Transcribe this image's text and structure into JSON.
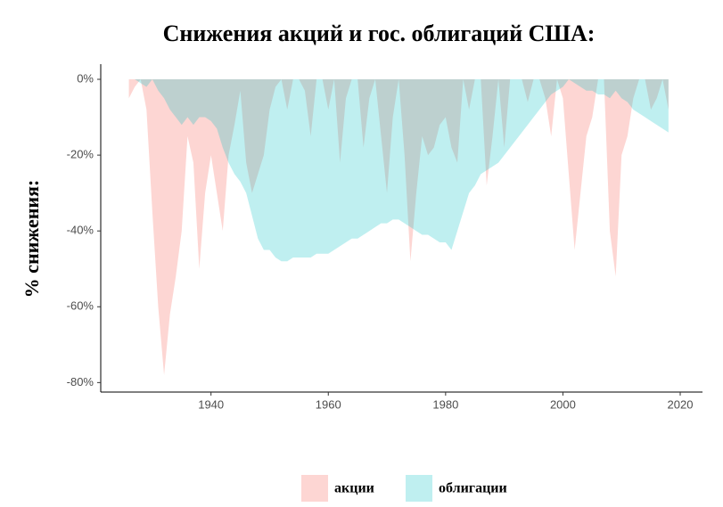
{
  "chart_data": {
    "type": "area",
    "title": "Снижения акций и гос. облигаций США:",
    "y_label": "% снижения:",
    "x": [
      1926,
      1927,
      1928,
      1929,
      1930,
      1931,
      1932,
      1933,
      1934,
      1935,
      1936,
      1937,
      1938,
      1939,
      1940,
      1941,
      1942,
      1943,
      1944,
      1945,
      1946,
      1947,
      1948,
      1949,
      1950,
      1951,
      1952,
      1953,
      1954,
      1955,
      1956,
      1957,
      1958,
      1959,
      1960,
      1961,
      1962,
      1963,
      1964,
      1965,
      1966,
      1967,
      1968,
      1969,
      1970,
      1971,
      1972,
      1973,
      1974,
      1975,
      1976,
      1977,
      1978,
      1979,
      1980,
      1981,
      1982,
      1983,
      1984,
      1985,
      1986,
      1987,
      1988,
      1989,
      1990,
      1991,
      1992,
      1993,
      1994,
      1995,
      1996,
      1997,
      1998,
      1999,
      2000,
      2001,
      2002,
      2003,
      2004,
      2005,
      2006,
      2007,
      2008,
      2009,
      2010,
      2011,
      2012,
      2013,
      2014,
      2015,
      2016,
      2017,
      2018
    ],
    "series": [
      {
        "name": "акции",
        "color": "#F8766D",
        "values": [
          -5,
          -2,
          0,
          -8,
          -35,
          -60,
          -78,
          -62,
          -52,
          -40,
          -15,
          -22,
          -50,
          -30,
          -20,
          -30,
          -40,
          -20,
          -12,
          -3,
          -22,
          -30,
          -25,
          -20,
          -8,
          -2,
          0,
          -8,
          0,
          0,
          -3,
          -15,
          0,
          0,
          -8,
          0,
          -22,
          -5,
          0,
          0,
          -18,
          -5,
          0,
          -15,
          -30,
          -10,
          0,
          -20,
          -48,
          -30,
          -15,
          -20,
          -18,
          -12,
          -10,
          -18,
          -22,
          0,
          -8,
          0,
          0,
          -28,
          -15,
          0,
          -18,
          0,
          0,
          0,
          -6,
          0,
          0,
          -5,
          -15,
          0,
          -5,
          -25,
          -45,
          -30,
          -15,
          -10,
          0,
          0,
          -40,
          -52,
          -20,
          -15,
          -5,
          0,
          0,
          -8,
          -5,
          0,
          -8
        ]
      },
      {
        "name": "облигации",
        "color": "#00BFC4",
        "values": [
          0,
          0,
          -1,
          -2,
          0,
          -3,
          -5,
          -8,
          -10,
          -12,
          -10,
          -12,
          -10,
          -10,
          -11,
          -13,
          -18,
          -22,
          -25,
          -27,
          -30,
          -36,
          -42,
          -45,
          -45,
          -47,
          -48,
          -48,
          -47,
          -47,
          -47,
          -47,
          -46,
          -46,
          -46,
          -45,
          -44,
          -43,
          -42,
          -42,
          -41,
          -40,
          -39,
          -38,
          -38,
          -37,
          -37,
          -38,
          -39,
          -40,
          -41,
          -41,
          -42,
          -43,
          -43,
          -45,
          -40,
          -35,
          -30,
          -28,
          -25,
          -24,
          -23,
          -22,
          -20,
          -18,
          -16,
          -14,
          -12,
          -10,
          -8,
          -6,
          -4,
          -3,
          -2,
          0,
          -1,
          -2,
          -3,
          -3,
          -4,
          -4,
          -5,
          -3,
          -5,
          -6,
          -8,
          -9,
          -10,
          -11,
          -12,
          -13,
          -14
        ]
      }
    ],
    "xlim": [
      1921.2,
      2023.8
    ],
    "xticks": [
      1940,
      1960,
      1980,
      2000,
      2020
    ],
    "ylim": [
      -82.5,
      4
    ],
    "yticks": [
      {
        "value": 0,
        "label": "0%"
      },
      {
        "value": -20,
        "label": "-20%"
      },
      {
        "value": -40,
        "label": "-40%"
      },
      {
        "value": -60,
        "label": "-60%"
      },
      {
        "value": -80,
        "label": "-80%"
      }
    ],
    "legend": "bottom"
  }
}
